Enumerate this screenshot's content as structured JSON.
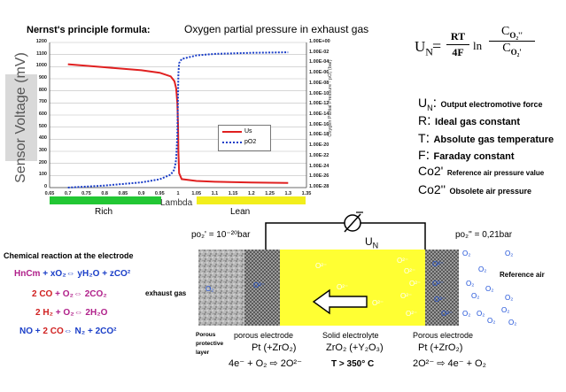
{
  "chart_data": {
    "type": "line",
    "title": "Nernst's principle formula:",
    "top_label": "Oxygen partial pressure in exhaust gas",
    "ylabel": "Sensor Voltage (mV)",
    "y2label": "Oxygen Partial Pressure - pO₂ (bar)",
    "xlabel": "Lambda",
    "xlim": [
      0.65,
      1.35
    ],
    "ylim": [
      0,
      1200
    ],
    "x_ticks": [
      "0.65",
      "0.7",
      "0.75",
      "0.8",
      "0.85",
      "0.9",
      "0.95",
      "1",
      "1.05",
      "1.1",
      "1.15",
      "1.2",
      "1.25",
      "1.3",
      "1.35"
    ],
    "y_ticks": [
      "1200",
      "1100",
      "1000",
      "900",
      "800",
      "700",
      "600",
      "500",
      "400",
      "300",
      "200",
      "100",
      "0"
    ],
    "y2_ticks": [
      "1.00E+00",
      "1.00E-02",
      "1.00E-04",
      "1.00E-06",
      "1.00E-08",
      "1.00E-10",
      "1.00E-12",
      "1.00E-14",
      "1.00E-16",
      "1.00E-18",
      "1.00E-20",
      "1.00E-22",
      "1.00E-24",
      "1.00E-26",
      "1.00E-28"
    ],
    "grid": true,
    "legend_position": "center",
    "series": [
      {
        "name": "Us",
        "axis": "left",
        "color": "#e02020",
        "style": "solid",
        "x": [
          0.7,
          0.8,
          0.9,
          0.95,
          0.98,
          0.99,
          0.995,
          0.998,
          1.0,
          1.001,
          1.003,
          1.01,
          1.05,
          1.1,
          1.2,
          1.3
        ],
        "y": [
          1020,
          995,
          970,
          950,
          920,
          880,
          820,
          700,
          520,
          300,
          120,
          70,
          55,
          48,
          42,
          38
        ]
      },
      {
        "name": "pO2",
        "axis": "right",
        "color": "#1a3ec8",
        "style": "dotted",
        "x": [
          0.7,
          0.8,
          0.9,
          0.95,
          0.98,
          0.99,
          0.995,
          0.998,
          1.0,
          1.001,
          1.003,
          1.01,
          1.05,
          1.1,
          1.2,
          1.3
        ],
        "y": [
          -28,
          -27.6,
          -27,
          -26.4,
          -25.5,
          -24.5,
          -22.5,
          -18,
          -10,
          -6,
          -4,
          -3.2,
          -2.5,
          -2.2,
          -2.0,
          -1.9
        ]
      }
    ]
  },
  "bars": {
    "rich": "Rich",
    "lean": "Lean",
    "lambda": "Lambda"
  },
  "formula": {
    "lhs": "U",
    "lhs_sub": "N",
    "eq": "=",
    "num": "RT",
    "den": "4F",
    "ln": "ln",
    "top": "C",
    "top_sub": "O₂''",
    "bot": "C",
    "bot_sub": "O₂'"
  },
  "definitions": [
    {
      "sym": "U",
      "sub": "N",
      "colon": ":",
      "text": "Output electromotive force"
    },
    {
      "sym": "R",
      "sub": "",
      "colon": ":",
      "text": "Ideal gas constant"
    },
    {
      "sym": "T",
      "sub": "",
      "colon": ":",
      "text": "Absolute gas temperature"
    },
    {
      "sym": "F",
      "sub": "",
      "colon": ":",
      "text": "Faraday constant"
    },
    {
      "sym": "Co2'",
      "sub": "",
      "colon": "",
      "text": "Reference air pressure value"
    },
    {
      "sym": "Co2''",
      "sub": "",
      "colon": "",
      "text": "Obsolete air pressure"
    }
  ],
  "chemistry": {
    "title": "Chemical reaction at the electrode",
    "eq1": {
      "a": "HnCm",
      "b": " + xO₂⇔ yH₂O + zCO²"
    },
    "eq2": {
      "a": "2 CO",
      "b": " + O₂⇔ 2CO₂"
    },
    "eq3": {
      "a": "2 H₂",
      "b": " + O₂⇔ 2H₂O"
    },
    "eq4": {
      "a": "NO + ",
      "b": "2 CO",
      "c": "⇔ N₂ + 2CO²"
    }
  },
  "cell": {
    "p_left": "po₂' = 10⁻²⁰bar",
    "p_right": "po₂'' = 0,21bar",
    "un": "U",
    "un_sub": "N",
    "exhaust": "exhaust gas",
    "reference": "Reference air",
    "o2": "O₂",
    "o2ion": "O²⁻",
    "porous_layer": "Porous protective layer",
    "porous_electrode_left": "porous electrode",
    "solid_electrolyte": "Solid electrolyte",
    "porous_electrode_right": "Porous electrode",
    "pt_left": "Pt (+ZrO₂)",
    "zro2": "ZrO₂ (+Y₂O₃)",
    "pt_right": "Pt (+ZrO₂)",
    "reaction_left": "4e⁻ + O₂ ⇨ 2O²⁻",
    "temperature": "T > 350° C",
    "reaction_right": "2O²⁻ ⇨ 4e⁻ + O₂"
  }
}
